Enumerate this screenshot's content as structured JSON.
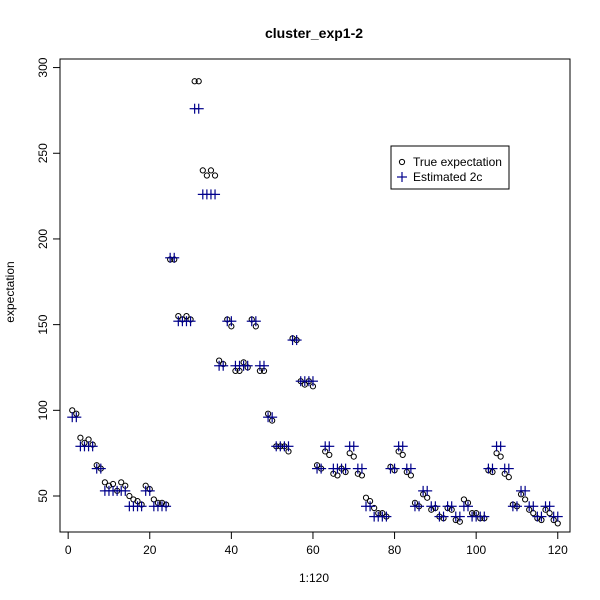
{
  "chart_data": {
    "type": "scatter",
    "title": "cluster_exp1-2",
    "xlabel": "1:120",
    "ylabel": "expectation",
    "xlim": [
      -2,
      123
    ],
    "ylim": [
      29,
      305
    ],
    "xticks": [
      0,
      20,
      40,
      60,
      80,
      100,
      120
    ],
    "yticks": [
      50,
      100,
      150,
      200,
      250,
      300
    ],
    "legend_position": "top-right",
    "series": [
      {
        "name": "True expectation",
        "marker": "open-circle",
        "color": "#000000",
        "x": [
          1,
          2,
          3,
          4,
          5,
          6,
          7,
          8,
          9,
          10,
          11,
          12,
          13,
          14,
          15,
          16,
          17,
          18,
          19,
          20,
          21,
          22,
          23,
          24,
          25,
          26,
          27,
          28,
          29,
          30,
          31,
          32,
          33,
          34,
          35,
          36,
          37,
          38,
          39,
          40,
          41,
          42,
          43,
          44,
          45,
          46,
          47,
          48,
          49,
          50,
          51,
          52,
          53,
          54,
          55,
          56,
          57,
          58,
          59,
          60,
          61,
          62,
          63,
          64,
          65,
          66,
          67,
          68,
          69,
          70,
          71,
          72,
          73,
          74,
          75,
          76,
          77,
          78,
          79,
          80,
          81,
          82,
          83,
          84,
          85,
          86,
          87,
          88,
          89,
          90,
          91,
          92,
          93,
          94,
          95,
          96,
          97,
          98,
          99,
          100,
          101,
          102,
          103,
          104,
          105,
          106,
          107,
          108,
          109,
          110,
          111,
          112,
          113,
          114,
          115,
          116,
          117,
          118,
          119,
          120
        ],
        "values": [
          100,
          98,
          84,
          81,
          83,
          80,
          68,
          66,
          58,
          56,
          57,
          53,
          58,
          56,
          50,
          48,
          47,
          45,
          56,
          54,
          48,
          46,
          46,
          45,
          188,
          188,
          155,
          153,
          155,
          153,
          292,
          292,
          240,
          237,
          240,
          237,
          129,
          127,
          153,
          149,
          123,
          123,
          128,
          125,
          153,
          149,
          123,
          123,
          98,
          94,
          79,
          79,
          79,
          76,
          142,
          141,
          117,
          115,
          117,
          114,
          68,
          66,
          76,
          74,
          63,
          62,
          66,
          64,
          75,
          73,
          63,
          62,
          49,
          47,
          43,
          40,
          40,
          38,
          67,
          65,
          76,
          74,
          64,
          62,
          46,
          44,
          51,
          49,
          42,
          43,
          38,
          37,
          43,
          42,
          36,
          35,
          48,
          46,
          40,
          40,
          37,
          37,
          65,
          64,
          75,
          73,
          63,
          61,
          45,
          44,
          51,
          48,
          42,
          40,
          37,
          36,
          42,
          40,
          36,
          34
        ]
      },
      {
        "name": "Estimated 2c",
        "marker": "plus",
        "color": "#00008B",
        "x": [
          1,
          2,
          3,
          4,
          5,
          6,
          7,
          8,
          9,
          10,
          11,
          12,
          13,
          14,
          15,
          16,
          17,
          18,
          19,
          20,
          21,
          22,
          23,
          24,
          25,
          26,
          27,
          28,
          29,
          30,
          31,
          32,
          33,
          34,
          35,
          36,
          37,
          38,
          39,
          40,
          41,
          42,
          43,
          44,
          45,
          46,
          47,
          48,
          49,
          50,
          51,
          52,
          53,
          54,
          55,
          56,
          57,
          58,
          59,
          60,
          61,
          62,
          63,
          64,
          65,
          66,
          67,
          68,
          69,
          70,
          71,
          72,
          73,
          74,
          75,
          76,
          77,
          78,
          79,
          80,
          81,
          82,
          83,
          84,
          85,
          86,
          87,
          88,
          89,
          90,
          91,
          92,
          93,
          94,
          95,
          96,
          97,
          98,
          99,
          100,
          101,
          102,
          103,
          104,
          105,
          106,
          107,
          108,
          109,
          110,
          111,
          112,
          113,
          114,
          115,
          116,
          117,
          118,
          119,
          120
        ],
        "values": [
          96,
          96,
          79,
          79,
          79,
          79,
          66,
          66,
          53,
          53,
          53,
          53,
          53,
          53,
          44,
          44,
          44,
          44,
          53,
          53,
          44,
          44,
          44,
          44,
          189,
          189,
          152,
          152,
          152,
          152,
          276,
          276,
          226,
          226,
          226,
          226,
          126,
          126,
          152,
          152,
          126,
          126,
          126,
          126,
          152,
          152,
          126,
          126,
          96,
          96,
          79,
          79,
          79,
          79,
          141,
          141,
          117,
          117,
          117,
          117,
          66,
          66,
          79,
          79,
          66,
          66,
          66,
          66,
          79,
          79,
          66,
          66,
          44,
          44,
          38,
          38,
          38,
          38,
          66,
          66,
          79,
          79,
          66,
          66,
          44,
          44,
          53,
          53,
          44,
          44,
          38,
          38,
          44,
          44,
          38,
          38,
          44,
          44,
          38,
          38,
          38,
          38,
          66,
          66,
          79,
          79,
          66,
          66,
          44,
          44,
          53,
          53,
          44,
          44,
          38,
          38,
          44,
          44,
          38,
          38
        ]
      }
    ]
  }
}
